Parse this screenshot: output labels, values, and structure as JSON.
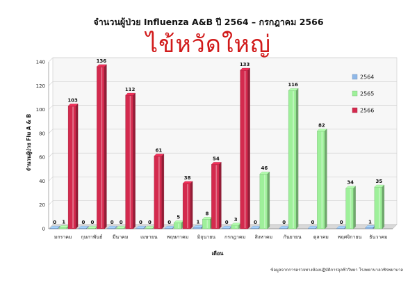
{
  "chart_data": {
    "type": "bar",
    "title": "จำนวนผู้ป่วย Influenza A&B ปี 2564 – กรกฎาคม 2566",
    "subtitle": "ไข้หวัดใหญ่",
    "xlabel": "เดือน",
    "ylabel": "จำนวนผู้ป่วย Flu A & B",
    "ylim": [
      0,
      140
    ],
    "yticks": [
      0,
      20,
      40,
      60,
      80,
      100,
      120,
      140
    ],
    "grid": true,
    "legend_position": "right",
    "categories": [
      "มกราคม",
      "กุมภาพันธ์",
      "มีนาคม",
      "เมษายน",
      "พฤษภาคม",
      "มิถุนายน",
      "กรกฎาคม",
      "สิงหาคม",
      "กันยายน",
      "ตุลาคม",
      "พฤศจิกายน",
      "ธันวาคม"
    ],
    "series": [
      {
        "name": "2564",
        "color": "#8fb8e8",
        "values": [
          0,
          0,
          0,
          0,
          0,
          1,
          0,
          0,
          0,
          0,
          0,
          1
        ]
      },
      {
        "name": "2565",
        "color": "#9ef09a",
        "values": [
          1,
          0,
          0,
          0,
          5,
          8,
          3,
          46,
          116,
          82,
          34,
          35
        ]
      },
      {
        "name": "2566",
        "color": "#d42a4e",
        "values": [
          103,
          136,
          112,
          61,
          38,
          54,
          133,
          null,
          null,
          null,
          null,
          null
        ]
      }
    ],
    "source_note": "ข้อมูลจากการตรวจทางห้องปฏิบัติการจุลชีววิทยา โรงพยาบาลวชิรพยาบาล"
  }
}
